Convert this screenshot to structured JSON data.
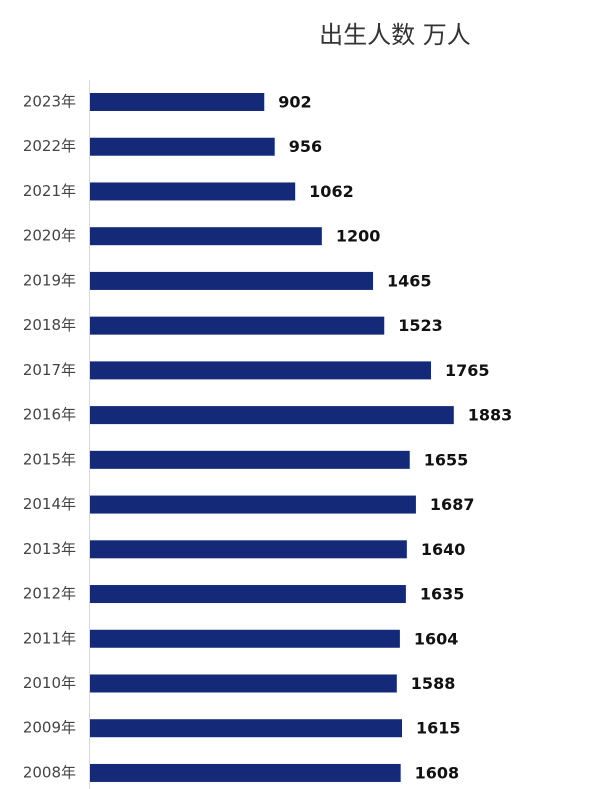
{
  "chart_data": {
    "type": "barh",
    "title": "出生人数 万人",
    "categories": [
      "2023年",
      "2022年",
      "2021年",
      "2020年",
      "2019年",
      "2018年",
      "2017年",
      "2016年",
      "2015年",
      "2014年",
      "2013年",
      "2012年",
      "2011年",
      "2010年",
      "2009年",
      "2008年"
    ],
    "values": [
      902,
      956,
      1062,
      1200,
      1465,
      1523,
      1765,
      1883,
      1655,
      1687,
      1640,
      1635,
      1604,
      1588,
      1615,
      1608
    ],
    "color": "#142a78",
    "xlim": [
      0,
      2500
    ]
  }
}
